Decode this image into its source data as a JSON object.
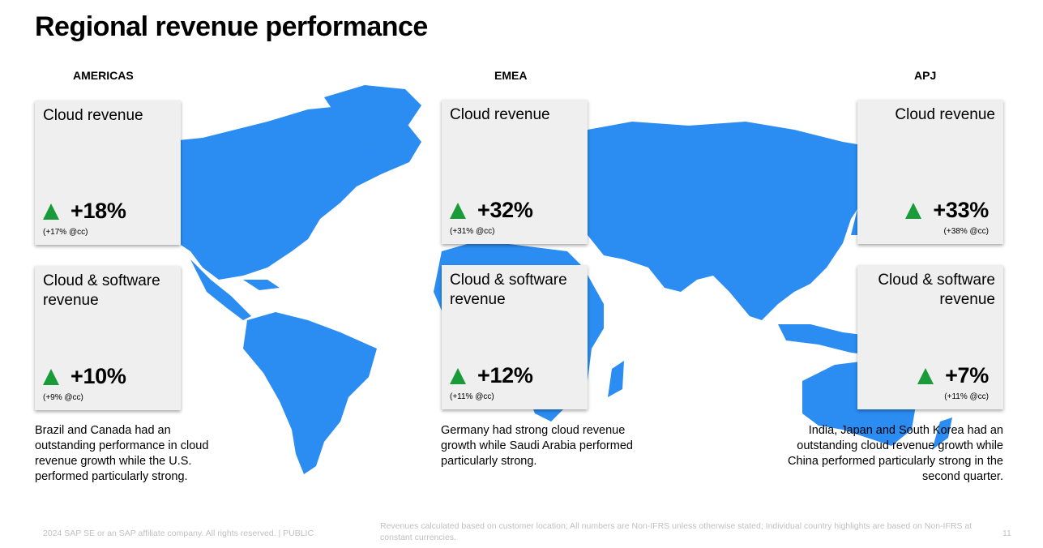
{
  "title": "Regional revenue performance",
  "regions": [
    {
      "label": "AMERICAS",
      "cloud": {
        "title": "Cloud revenue",
        "value": "+18%",
        "cc": "(+17% @cc)"
      },
      "cloud_software": {
        "title": "Cloud & software revenue",
        "value": "+10%",
        "cc": "(+9% @cc)"
      },
      "note": "Brazil and Canada had an outstanding performance in cloud revenue growth while the U.S. performed particularly strong."
    },
    {
      "label": "EMEA",
      "cloud": {
        "title": "Cloud revenue",
        "value": "+32%",
        "cc": "(+31% @cc)"
      },
      "cloud_software": {
        "title": "Cloud & software revenue",
        "value": "+12%",
        "cc": "(+11% @cc)"
      },
      "note": "Germany had strong cloud revenue growth while Saudi Arabia performed particularly strong."
    },
    {
      "label": "APJ",
      "cloud": {
        "title": "Cloud revenue",
        "value": "+33%",
        "cc": "(+38% @cc)"
      },
      "cloud_software": {
        "title": "Cloud & software revenue",
        "value": "+7%",
        "cc": "(+11% @cc)"
      },
      "note": "India, Japan and South Korea had an outstanding cloud revenue growth while China performed particularly strong in the second quarter."
    }
  ],
  "footer": {
    "copyright": "2024 SAP SE or an SAP affiliate company. All rights reserved.  | PUBLIC",
    "disclaimer": "Revenues calculated based on customer location; All numbers are Non-IFRS unless otherwise stated; Individual country highlights are based on Non-IFRS at constant currencies.",
    "page_number": "11"
  },
  "colors": {
    "map": "#2b8cf2",
    "up_arrow": "#1a9b3a",
    "card": "#efefef"
  },
  "icons": {
    "up": "triangle-up-icon",
    "map": "world-map"
  }
}
